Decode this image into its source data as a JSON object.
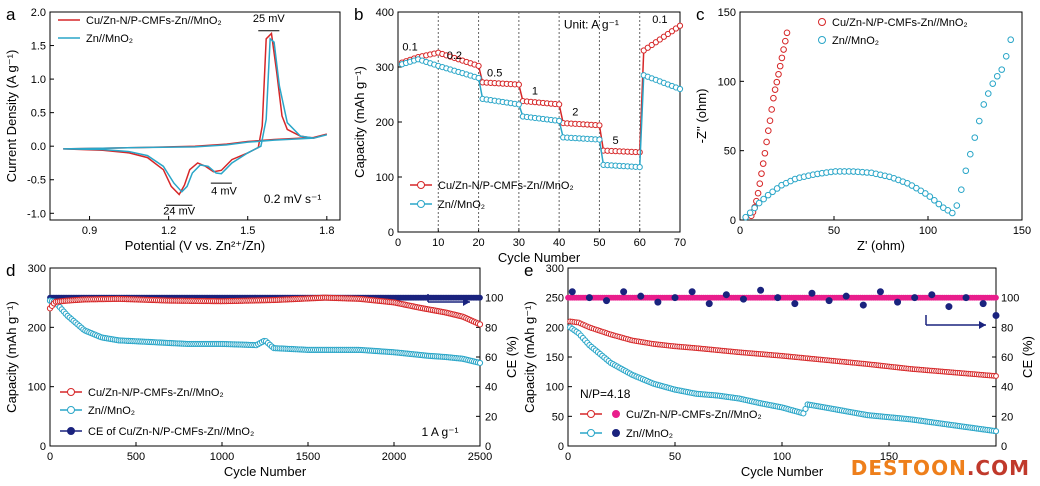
{
  "colors": {
    "red": "#d62728",
    "blue": "#2aa6c8",
    "navy": "#1a237e",
    "magenta": "#e91e8c"
  },
  "watermark": {
    "brand": "DESTOON",
    "suffix": ".COM"
  },
  "chart_data": [
    {
      "panel": "a",
      "type": "line",
      "xlabel": "Potential (V vs. Zn²⁺/Zn)",
      "ylabel": "Current Density (A g⁻¹)",
      "xlim": [
        0.75,
        1.85
      ],
      "ylim": [
        -1.1,
        2.0
      ],
      "xticks": [
        "0.9",
        "1.2",
        "1.5",
        "1.8"
      ],
      "yticks": [
        "-1.0",
        "-0.5",
        "0.0",
        "0.5",
        "1.0",
        "1.5",
        "2.0"
      ],
      "legend": [
        "Cu/Zn-N/P-CMFs-Zn//MnO₂",
        "Zn//MnO₂"
      ],
      "annotations": [
        "25 mV",
        "4 mV",
        "24 mV",
        "0.2 mV s⁻¹"
      ],
      "series": [
        {
          "name": "Cu/Zn-N/P-CMFs-Zn//MnO₂",
          "x": [
            0.8,
            0.95,
            1.05,
            1.12,
            1.18,
            1.21,
            1.24,
            1.26,
            1.28,
            1.31,
            1.34,
            1.37,
            1.4,
            1.44,
            1.5,
            1.54,
            1.555,
            1.57,
            1.59,
            1.61,
            1.63,
            1.65,
            1.7,
            1.75,
            1.8,
            1.75,
            1.6,
            1.5,
            1.42,
            1.3,
            1.1,
            0.95,
            0.8
          ],
          "y": [
            -0.04,
            -0.06,
            -0.1,
            -0.17,
            -0.35,
            -0.6,
            -0.72,
            -0.58,
            -0.35,
            -0.25,
            -0.3,
            -0.38,
            -0.36,
            -0.2,
            -0.1,
            -0.02,
            0.3,
            1.6,
            1.68,
            1.1,
            0.45,
            0.25,
            0.15,
            0.12,
            0.18,
            0.13,
            0.1,
            0.07,
            0.03,
            0.0,
            -0.02,
            -0.03,
            -0.04
          ]
        },
        {
          "name": "Zn//MnO₂",
          "x": [
            0.8,
            0.95,
            1.05,
            1.12,
            1.18,
            1.22,
            1.25,
            1.27,
            1.29,
            1.32,
            1.35,
            1.38,
            1.4,
            1.44,
            1.5,
            1.55,
            1.57,
            1.585,
            1.6,
            1.62,
            1.65,
            1.7,
            1.75,
            1.8,
            1.75,
            1.6,
            1.5,
            1.42,
            1.3,
            1.1,
            0.95,
            0.8
          ],
          "y": [
            -0.04,
            -0.05,
            -0.08,
            -0.14,
            -0.3,
            -0.55,
            -0.68,
            -0.6,
            -0.4,
            -0.28,
            -0.3,
            -0.4,
            -0.41,
            -0.25,
            -0.1,
            0.0,
            0.4,
            1.6,
            1.55,
            0.9,
            0.35,
            0.15,
            0.12,
            0.17,
            0.12,
            0.09,
            0.06,
            0.02,
            -0.01,
            -0.02,
            -0.03,
            -0.04
          ]
        }
      ]
    },
    {
      "panel": "b",
      "type": "line",
      "xlabel": "Cycle Number",
      "ylabel": "Capacity (mAh g⁻¹)",
      "xlim": [
        0,
        70
      ],
      "ylim": [
        0,
        400
      ],
      "xticks": [
        "0",
        "10",
        "20",
        "30",
        "40",
        "50",
        "60",
        "70"
      ],
      "yticks": [
        "0",
        "100",
        "200",
        "300",
        "400"
      ],
      "legend": [
        "Cu/Zn-N/P-CMFs-Zn//MnO₂",
        "Zn//MnO₂"
      ],
      "unit_label": "Unit: A g⁻¹",
      "rate_labels": [
        {
          "text": "0.1",
          "x": 3,
          "y": 330
        },
        {
          "text": "0.2",
          "x": 14,
          "y": 315
        },
        {
          "text": "0.5",
          "x": 24,
          "y": 283
        },
        {
          "text": "1",
          "x": 34,
          "y": 250
        },
        {
          "text": "2",
          "x": 44,
          "y": 212
        },
        {
          "text": "5",
          "x": 54,
          "y": 160
        },
        {
          "text": "0.1",
          "x": 65,
          "y": 380
        }
      ],
      "series": [
        {
          "name": "Cu/Zn-N/P-CMFs-Zn//MnO₂",
          "x": [
            1,
            5,
            10,
            20,
            21,
            30,
            31,
            40,
            41,
            50,
            51,
            60,
            61,
            70
          ],
          "y": [
            308,
            318,
            326,
            302,
            272,
            268,
            238,
            232,
            198,
            194,
            148,
            145,
            330,
            375
          ]
        },
        {
          "name": "Zn//MnO₂",
          "x": [
            1,
            5,
            10,
            20,
            21,
            30,
            31,
            40,
            41,
            50,
            51,
            60,
            61,
            70
          ],
          "y": [
            305,
            314,
            302,
            280,
            242,
            232,
            210,
            202,
            172,
            168,
            122,
            118,
            285,
            260
          ]
        }
      ]
    },
    {
      "panel": "c",
      "type": "scatter",
      "xlabel": "Z' (ohm)",
      "ylabel": "-Z'' (ohm)",
      "xlim": [
        0,
        150
      ],
      "ylim": [
        0,
        150
      ],
      "xticks": [
        "0",
        "50",
        "100",
        "150"
      ],
      "yticks": [
        "0",
        "50",
        "100",
        "150"
      ],
      "legend": [
        "Cu/Zn-N/P-CMFs-Zn//MnO₂",
        "Zn//MnO₂"
      ],
      "series": [
        {
          "name": "Cu/Zn-N/P-CMFs-Zn//MnO₂",
          "x": [
            6,
            7,
            8,
            9,
            10,
            11,
            12,
            13,
            14,
            15,
            16,
            17,
            18,
            20,
            22,
            25
          ],
          "y": [
            3,
            6,
            10,
            15,
            22,
            30,
            38,
            46,
            55,
            64,
            72,
            81,
            90,
            102,
            115,
            135
          ]
        },
        {
          "name": "Zn//MnO₂",
          "x": [
            3,
            6,
            10,
            15,
            22,
            30,
            40,
            50,
            60,
            70,
            80,
            90,
            100,
            108,
            113,
            116,
            120,
            125,
            130,
            135,
            140,
            144
          ],
          "y": [
            2,
            6,
            12,
            18,
            25,
            30,
            33,
            35,
            35,
            34,
            31,
            26,
            18,
            9,
            5,
            12,
            35,
            60,
            85,
            100,
            110,
            130
          ]
        }
      ]
    },
    {
      "panel": "d",
      "type": "line",
      "xlabel": "Cycle Number",
      "ylabel": "Capacity (mAh g⁻¹)",
      "y2label": "CE (%)",
      "xlim": [
        0,
        2500
      ],
      "ylim": [
        0,
        300
      ],
      "y2lim": [
        0,
        120
      ],
      "xticks": [
        "0",
        "500",
        "1000",
        "1500",
        "2000",
        "2500"
      ],
      "yticks": [
        "0",
        "100",
        "200",
        "300"
      ],
      "y2ticks": [
        "0",
        "20",
        "40",
        "60",
        "80",
        "100"
      ],
      "legend": [
        "Cu/Zn-N/P-CMFs-Zn//MnO₂",
        "Zn//MnO₂",
        "CE of Cu/Zn-N/P-CMFs-Zn//MnO₂"
      ],
      "annotation": "1 A g⁻¹",
      "series": [
        {
          "name": "Cu/Zn-N/P-CMFs-Zn//MnO₂",
          "axis": "left",
          "x": [
            0,
            30,
            100,
            200,
            400,
            700,
            1000,
            1300,
            1600,
            1800,
            2000,
            2150,
            2300,
            2400,
            2500
          ],
          "y": [
            232,
            243,
            245,
            247,
            248,
            245,
            244,
            246,
            250,
            248,
            242,
            233,
            225,
            218,
            205
          ]
        },
        {
          "name": "Zn//MnO₂",
          "axis": "left",
          "x": [
            0,
            30,
            100,
            200,
            300,
            400,
            600,
            800,
            1000,
            1200,
            1250,
            1300,
            1500,
            1800,
            2000,
            2200,
            2300,
            2400,
            2500
          ],
          "y": [
            245,
            243,
            220,
            195,
            183,
            178,
            175,
            172,
            172,
            170,
            178,
            165,
            162,
            162,
            158,
            152,
            150,
            147,
            140
          ]
        },
        {
          "name": "CE of Cu/Zn-N/P-CMFs-Zn//MnO₂",
          "axis": "right",
          "x": [
            0,
            500,
            1000,
            1500,
            2000,
            2500
          ],
          "y": [
            100,
            100,
            100,
            100,
            100,
            100
          ]
        }
      ]
    },
    {
      "panel": "e",
      "type": "line",
      "xlabel": "Cycle Number",
      "ylabel": "Capacity (mAh g⁻¹)",
      "y2label": "CE (%)",
      "xlim": [
        0,
        200
      ],
      "ylim": [
        0,
        300
      ],
      "y2lim": [
        0,
        120
      ],
      "xticks": [
        "0",
        "50",
        "100",
        "150"
      ],
      "yticks": [
        "0",
        "50",
        "100",
        "150",
        "200",
        "250",
        "300"
      ],
      "y2ticks": [
        "0",
        "20",
        "40",
        "60",
        "80",
        "100"
      ],
      "legend": [
        "Cu/Zn-N/P-CMFs-Zn//MnO₂",
        "Zn//MnO₂"
      ],
      "annotation": "N/P=4.18",
      "series": [
        {
          "name": "Cu/Zn-N/P-CMFs-Zn//MnO₂",
          "axis": "left",
          "x": [
            1,
            5,
            10,
            20,
            30,
            40,
            50,
            60,
            80,
            100,
            120,
            140,
            160,
            180,
            200
          ],
          "y": [
            210,
            208,
            200,
            188,
            178,
            172,
            168,
            165,
            158,
            152,
            145,
            138,
            130,
            124,
            118
          ]
        },
        {
          "name": "Zn//MnO₂",
          "axis": "left",
          "x": [
            1,
            5,
            10,
            20,
            30,
            40,
            50,
            60,
            70,
            80,
            90,
            100,
            110,
            112,
            120,
            140,
            160,
            180,
            200
          ],
          "y": [
            200,
            190,
            170,
            140,
            120,
            105,
            95,
            88,
            85,
            80,
            72,
            65,
            55,
            70,
            65,
            52,
            45,
            35,
            25
          ]
        },
        {
          "name": "CE of Cu/Zn-N/P-CMFs-Zn//MnO₂",
          "axis": "right",
          "x": [
            0,
            50,
            100,
            150,
            200
          ],
          "y": [
            100,
            100,
            100,
            100,
            100
          ]
        },
        {
          "name": "CE of Zn//MnO₂",
          "axis": "right",
          "x": [
            2,
            10,
            18,
            26,
            34,
            42,
            50,
            58,
            66,
            74,
            82,
            90,
            98,
            106,
            114,
            122,
            130,
            138,
            146,
            154,
            162,
            170,
            178,
            186,
            194,
            200
          ],
          "y": [
            104,
            100,
            98,
            104,
            101,
            97,
            100,
            104,
            96,
            102,
            99,
            105,
            100,
            96,
            103,
            98,
            101,
            95,
            104,
            97,
            100,
            102,
            94,
            100,
            96,
            88
          ]
        }
      ]
    }
  ]
}
